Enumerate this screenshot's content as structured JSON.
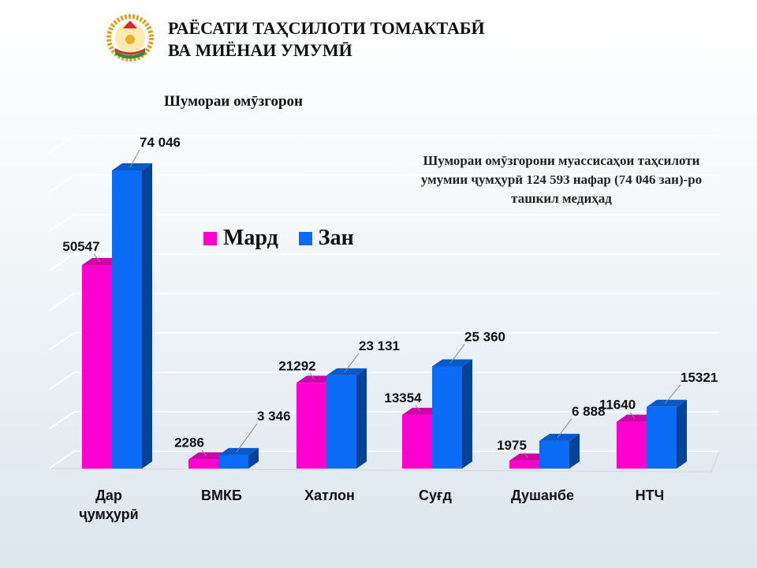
{
  "header": {
    "title_line1": "РАЁСАТИ ТАҲСИЛОТИ ТОМАКТАБӢ",
    "title_line2": "ВА МИЁНАИ УМУМӢ"
  },
  "note": "Шумораи омӯзгорони муассисаҳои таҳсилоти умумии ҷумҳурӣ 124 593 нафар (74 046 зан)-ро ташкил медиҳад",
  "colors": {
    "mard": "#ff00d0",
    "zan": "#0a6cf5"
  },
  "chart_data": {
    "type": "bar",
    "title": "Шумораи омӯзгорон",
    "categories": [
      "Дар ҷумҳурӣ",
      "ВМКБ",
      "Хатлон",
      "Суғд",
      "Душанбе",
      "НТЧ"
    ],
    "series": [
      {
        "name": "Мард",
        "values": [
          50547,
          2286,
          21292,
          13354,
          1975,
          11640
        ],
        "labels": [
          "50547",
          "2286",
          "21292",
          "13354",
          "1975",
          "11640"
        ]
      },
      {
        "name": "Зан",
        "values": [
          74046,
          3346,
          23131,
          25360,
          6888,
          15321
        ],
        "labels": [
          "74 046",
          "3 346",
          "23 131",
          "25 360",
          "6 888",
          "15321"
        ]
      }
    ],
    "ylim": [
      0,
      80000
    ],
    "grid": true,
    "legend": "center"
  }
}
